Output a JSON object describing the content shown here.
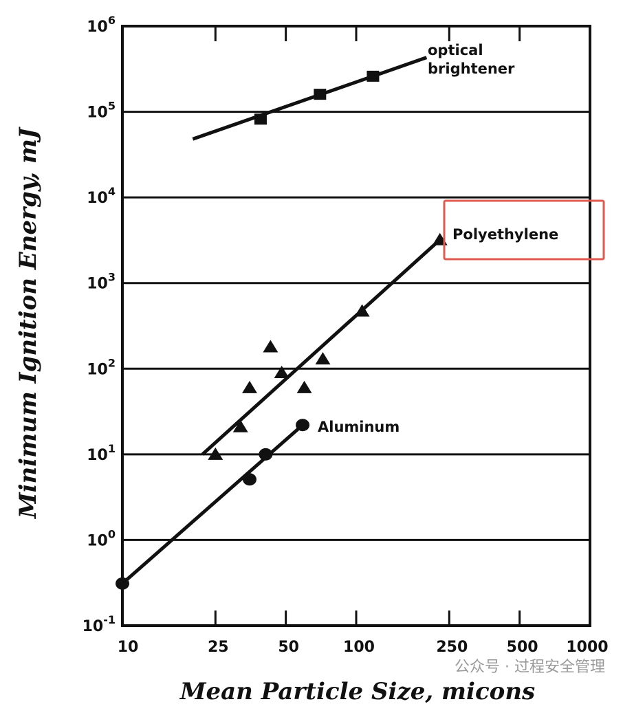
{
  "chart_data": {
    "type": "scatter",
    "title": "",
    "xlabel": "Mean Particle Size, micons",
    "ylabel": "Minimum Ignition Energy, mJ",
    "x_scale": "log",
    "y_scale": "log",
    "xlim": [
      10,
      1000
    ],
    "ylim": [
      0.1,
      1000000
    ],
    "x_ticks": [
      10,
      25,
      50,
      100,
      250,
      500,
      1000
    ],
    "x_tick_labels": [
      "10",
      "25",
      "50",
      "100",
      "250",
      "500",
      "1000"
    ],
    "y_ticks": [
      0.1,
      1,
      10,
      100,
      1000,
      10000,
      100000,
      1000000
    ],
    "y_tick_labels": [
      {
        "base": "10",
        "exp": "-1"
      },
      {
        "base": "10",
        "exp": "0"
      },
      {
        "base": "10",
        "exp": "1"
      },
      {
        "base": "10",
        "exp": "2"
      },
      {
        "base": "10",
        "exp": "3"
      },
      {
        "base": "10",
        "exp": "4"
      },
      {
        "base": "10",
        "exp": "5"
      },
      {
        "base": "10",
        "exp": "6"
      }
    ],
    "grid": "horizontal at decades",
    "series": [
      {
        "name": "optical brightener",
        "marker": "square",
        "points": [
          [
            39,
            82000
          ],
          [
            70,
            160000
          ],
          [
            118,
            260000
          ]
        ],
        "fit_line": [
          [
            20,
            48000
          ],
          [
            200,
            430000
          ]
        ]
      },
      {
        "name": "Polyethylene",
        "marker": "triangle",
        "highlighted": true,
        "points": [
          [
            25,
            10
          ],
          [
            32,
            21
          ],
          [
            35,
            60
          ],
          [
            43,
            180
          ],
          [
            48,
            90
          ],
          [
            60,
            60
          ],
          [
            72,
            130
          ],
          [
            106,
            470
          ],
          [
            228,
            3200
          ]
        ],
        "fit_line": [
          [
            22,
            10
          ],
          [
            228,
            3200
          ]
        ]
      },
      {
        "name": "Aluminum",
        "marker": "circle",
        "points": [
          [
            10,
            0.31
          ],
          [
            35,
            5.1
          ],
          [
            41,
            10
          ],
          [
            59,
            22
          ]
        ],
        "fit_line": [
          [
            10,
            0.31
          ],
          [
            59,
            22
          ]
        ]
      }
    ]
  },
  "highlight_color": "#e05a4f",
  "watermark": "公众号 · 过程安全管理"
}
